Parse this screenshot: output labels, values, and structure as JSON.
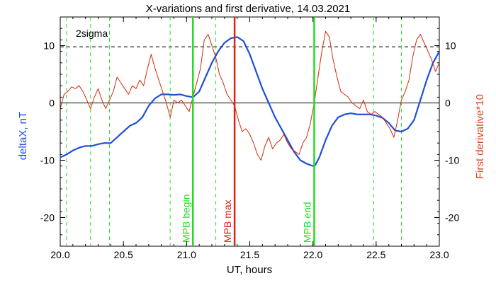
{
  "chart_data": {
    "type": "line",
    "title": "X-variations and first derivative, 14.03.2021",
    "xlabel": "UT, hours",
    "ylabel_left": "deltaX, nT",
    "ylabel_right": "First derivative*10",
    "xlim": [
      20.0,
      23.0
    ],
    "ylim": [
      -25,
      15
    ],
    "x_ticks": [
      "20.0",
      "20.5",
      "21.0",
      "21.5",
      "22.0",
      "22.5",
      "23.0"
    ],
    "y_ticks": [
      "-20",
      "-10",
      "0",
      "10"
    ],
    "sigma_label": "2sigma",
    "sigma_level": 9.8,
    "colors": {
      "deltaX": "#1e4fd8",
      "derivative": "#d42a0a",
      "mpb_begin": "#22dd22",
      "mpb_max": "#e02010",
      "mpb_end": "#22dd22",
      "dashed_green": "#22dd22",
      "right_axis_label": "#e0401a",
      "left_axis_label": "#1e4fd8"
    },
    "markers": [
      {
        "label": "MPB begin",
        "x": 21.05,
        "color": "#22dd22"
      },
      {
        "label": "MPB max",
        "x": 21.38,
        "color": "#e02010"
      },
      {
        "label": "MPB end",
        "x": 22.01,
        "color": "#22dd22"
      }
    ],
    "dashed_verticals": [
      20.05,
      20.24,
      20.39,
      20.87,
      21.23,
      22.48,
      22.7
    ],
    "series": [
      {
        "name": "deltaX, nT",
        "x": [
          20.0,
          20.05,
          20.1,
          20.15,
          20.2,
          20.25,
          20.3,
          20.35,
          20.4,
          20.45,
          20.5,
          20.55,
          20.6,
          20.65,
          20.7,
          20.75,
          20.8,
          20.85,
          20.9,
          20.95,
          21.0,
          21.05,
          21.1,
          21.15,
          21.2,
          21.25,
          21.3,
          21.35,
          21.4,
          21.45,
          21.5,
          21.55,
          21.6,
          21.65,
          21.7,
          21.75,
          21.8,
          21.85,
          21.9,
          21.95,
          22.0,
          22.02,
          22.05,
          22.1,
          22.15,
          22.2,
          22.25,
          22.3,
          22.35,
          22.4,
          22.45,
          22.5,
          22.55,
          22.6,
          22.65,
          22.7,
          22.75,
          22.8,
          22.85,
          22.9,
          22.95,
          23.0
        ],
        "y": [
          -9.5,
          -9.0,
          -8.3,
          -7.8,
          -7.5,
          -7.5,
          -7.2,
          -7.0,
          -7.0,
          -6.0,
          -5.0,
          -4.0,
          -3.5,
          -2.5,
          -0.5,
          0.8,
          1.5,
          1.5,
          1.4,
          1.5,
          1.2,
          1.0,
          2.0,
          4.5,
          7.0,
          9.0,
          10.5,
          11.3,
          11.5,
          10.8,
          8.5,
          5.5,
          2.5,
          0.0,
          -2.5,
          -4.5,
          -6.5,
          -8.5,
          -10.0,
          -10.6,
          -11.0,
          -10.8,
          -9.5,
          -6.5,
          -4.0,
          -2.5,
          -2.0,
          -1.8,
          -2.0,
          -2.0,
          -2.0,
          -2.2,
          -2.6,
          -3.5,
          -4.8,
          -5.0,
          -4.5,
          -3.0,
          0.5,
          4.0,
          7.0,
          9.0
        ]
      },
      {
        "name": "First derivative*10",
        "x": [
          20.0,
          20.03,
          20.06,
          20.09,
          20.12,
          20.15,
          20.18,
          20.21,
          20.24,
          20.27,
          20.3,
          20.33,
          20.36,
          20.39,
          20.42,
          20.45,
          20.48,
          20.51,
          20.54,
          20.57,
          20.6,
          20.63,
          20.66,
          20.69,
          20.72,
          20.75,
          20.78,
          20.81,
          20.84,
          20.87,
          20.9,
          20.93,
          20.96,
          20.99,
          21.02,
          21.05,
          21.08,
          21.11,
          21.14,
          21.17,
          21.2,
          21.23,
          21.26,
          21.29,
          21.32,
          21.35,
          21.38,
          21.41,
          21.44,
          21.47,
          21.5,
          21.53,
          21.56,
          21.59,
          21.62,
          21.65,
          21.68,
          21.71,
          21.74,
          21.77,
          21.8,
          21.83,
          21.86,
          21.89,
          21.92,
          21.95,
          21.98,
          22.01,
          22.04,
          22.07,
          22.1,
          22.13,
          22.16,
          22.19,
          22.22,
          22.25,
          22.28,
          22.31,
          22.34,
          22.37,
          22.4,
          22.43,
          22.46,
          22.49,
          22.52,
          22.55,
          22.58,
          22.61,
          22.64,
          22.67,
          22.7,
          22.73,
          22.76,
          22.79,
          22.82,
          22.85,
          22.88,
          22.91,
          22.94,
          22.97,
          23.0
        ],
        "y": [
          -1.0,
          1.5,
          2.0,
          2.8,
          2.5,
          3.0,
          2.0,
          0.5,
          -1.0,
          1.0,
          2.5,
          0.5,
          -1.0,
          0.5,
          2.0,
          4.5,
          3.5,
          2.5,
          1.5,
          3.0,
          2.5,
          4.0,
          3.0,
          6.0,
          8.5,
          6.0,
          4.0,
          2.0,
          0.0,
          -2.5,
          0.5,
          0.0,
          0.5,
          -0.5,
          -1.5,
          1.0,
          3.5,
          6.0,
          11.0,
          12.0,
          10.0,
          8.0,
          5.0,
          3.5,
          1.5,
          0.5,
          -0.5,
          -3.0,
          -5.0,
          -4.5,
          -5.5,
          -7.0,
          -9.0,
          -10.0,
          -7.5,
          -6.0,
          -8.0,
          -7.0,
          -6.5,
          -5.5,
          -7.0,
          -8.0,
          -8.5,
          -9.0,
          -7.0,
          -6.0,
          -3.5,
          0.0,
          4.5,
          9.0,
          12.5,
          11.5,
          7.5,
          4.5,
          2.0,
          1.5,
          1.0,
          0.0,
          -0.5,
          -1.0,
          0.5,
          -1.5,
          -2.0,
          -1.5,
          -2.0,
          -2.5,
          -3.5,
          -4.5,
          -6.0,
          -3.0,
          0.5,
          2.0,
          4.0,
          8.0,
          11.0,
          12.0,
          10.5,
          9.0,
          7.5,
          5.5,
          7.0
        ]
      }
    ]
  }
}
